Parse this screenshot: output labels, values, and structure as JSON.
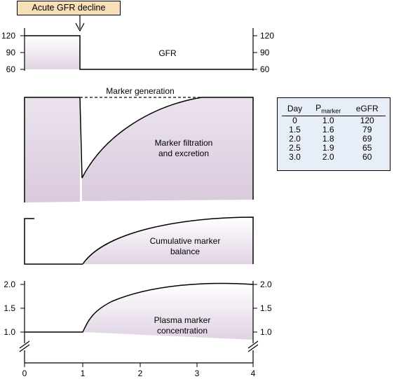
{
  "callout": "Acute GFR decline",
  "gfr_panel": {
    "label": "GFR",
    "y_ticks": [
      "120",
      "90",
      "60"
    ]
  },
  "marker_panel": {
    "generation_label": "Marker generation",
    "filtration_label_line1": "Marker filtration",
    "filtration_label_line2": "and excretion"
  },
  "balance_panel": {
    "label_line1": "Cumulative marker",
    "label_line2": "balance"
  },
  "plasma_panel": {
    "label_line1": "Plasma marker",
    "label_line2": "concentration",
    "y_ticks": [
      "2.0",
      "1.5",
      "1.0"
    ]
  },
  "x_axis": {
    "ticks": [
      "0",
      "1",
      "2",
      "3",
      "4"
    ]
  },
  "table": {
    "headers": {
      "day": "Day",
      "p_main": "P",
      "p_sub": "marker",
      "egfr": "eGFR"
    },
    "rows": [
      {
        "day": "0",
        "p": "1.0",
        "egfr": "120"
      },
      {
        "day": "1.5",
        "p": "1.6",
        "egfr": "79"
      },
      {
        "day": "2.0",
        "p": "1.8",
        "egfr": "69"
      },
      {
        "day": "2.5",
        "p": "1.9",
        "egfr": "65"
      },
      {
        "day": "3.0",
        "p": "2.0",
        "egfr": "60"
      }
    ]
  },
  "colors": {
    "fill_top": "#ffffff",
    "fill_bottom": "#e0d2e2",
    "callout_bg": "#f7dfb7",
    "table_bg": "#e8eef8"
  }
}
